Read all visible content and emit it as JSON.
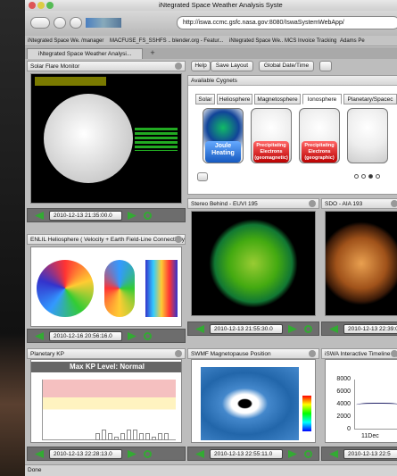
{
  "window": {
    "title": "iNtegrated Space Weather Analysis Syste"
  },
  "toolbar": {
    "url": "http://iswa.ccmc.gsfc.nasa.gov:8080/IswaSystemWebApp/"
  },
  "bookmarks": [
    "iNtegrated Space We...",
    "/manager",
    "MACFUSE_FS_SSHFS ...",
    "blender.org - Featur...",
    "iNtegrated Space We...",
    "MCS Invoice Tracking",
    "Adams Pe"
  ],
  "tab": "iNtegrated Space Weather Analysi...",
  "toolbar_buttons": [
    "Help",
    "Save Layout",
    "Global Date/Time"
  ],
  "cygnets": {
    "title": "Available Cygnets",
    "tabs": [
      "Solar",
      "Heliosphere",
      "Magnetosphere",
      "Ionosphere",
      "Planetary/Spacec"
    ],
    "cards": [
      "Joule Heating",
      "Precipitating Electrons (geomagnetic)",
      "Precipitating Electrons (geographic)"
    ]
  },
  "panels": [
    {
      "title": "Solar Flare Monitor",
      "date": "2010-12-13 21:35:00.0"
    },
    {
      "title": "ENLIL Heliosphere ( Velocity + Earth Field-Line Connectivity )",
      "date": "2010-12-16 20:56:16.0"
    },
    {
      "title": "Planetary KP",
      "date": "2010-12-13 22:28:13.0"
    },
    {
      "title": "Stereo Behind - EUVI 195",
      "date": "2010-12-13 21:55:30.0"
    },
    {
      "title": "SWMF Magnetopause Position",
      "date": "2010-12-13 22:55:11.0"
    },
    {
      "title": "SDO - AIA 193",
      "date": "2010-12-13 22:39:0"
    },
    {
      "title": "iSWA Interactive Timeline - (",
      "date": "2010-12-13 22:5"
    }
  ],
  "kp_heading": "Max KP Level: Normal",
  "timeline": {
    "yticks": [
      "8000",
      "6000",
      "4000",
      "2000",
      "0"
    ],
    "xlabel": "11Dec"
  },
  "status": "Done"
}
